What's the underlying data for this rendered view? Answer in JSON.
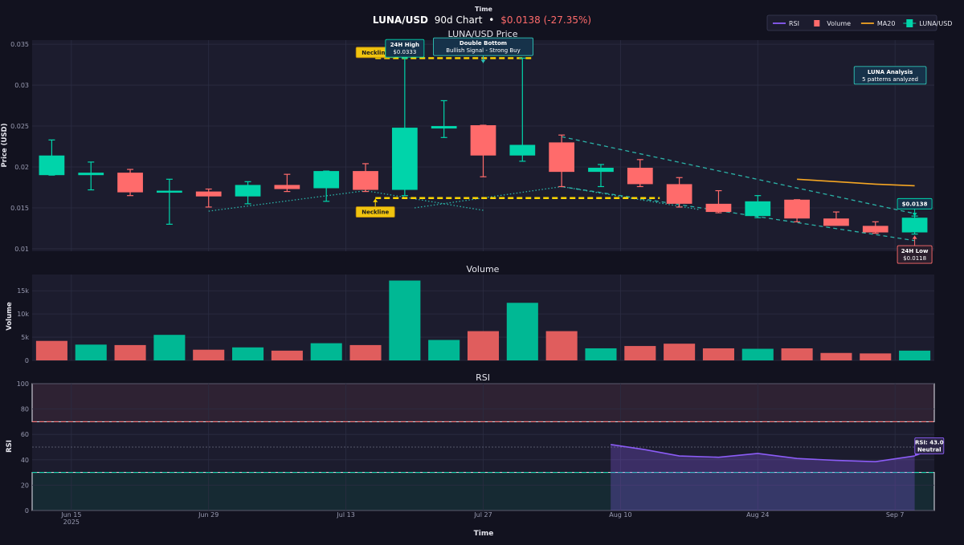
{
  "header": {
    "top_label": "Time",
    "title_symbol": "LUNA/USD",
    "title_period": "90d Chart",
    "title_bullet": "•",
    "title_change": "$0.0138 (-27.35%)"
  },
  "colors": {
    "background": "#12121f",
    "panel": "#1c1c2e",
    "grid": "#2b2d42",
    "bull": "#00d4aa",
    "bear": "#ff6b6b",
    "bull_volume": "#00b894",
    "bear_volume": "#e05d5d",
    "ma": "#f5a623",
    "rsi": "#8b5cf6",
    "neckline": "#ffd600",
    "trend": "#2ec4b6"
  },
  "legend": [
    {
      "label": "RSI",
      "kind": "line",
      "color": "#8b5cf6"
    },
    {
      "label": "Volume",
      "kind": "box",
      "color": "#ff6b6b"
    },
    {
      "label": "MA20",
      "kind": "line",
      "color": "#f5a623"
    },
    {
      "label": "LUNA/USD",
      "kind": "candle",
      "color": "#00d4aa"
    }
  ],
  "x_axis": {
    "label": "Time",
    "ticks": [
      {
        "day": 3,
        "label": "Jun 15",
        "sub": "2025"
      },
      {
        "day": 17,
        "label": "Jun 29",
        "sub": ""
      },
      {
        "day": 31,
        "label": "Jul 13",
        "sub": ""
      },
      {
        "day": 45,
        "label": "Jul 27",
        "sub": ""
      },
      {
        "day": 59,
        "label": "Aug 10",
        "sub": ""
      },
      {
        "day": 73,
        "label": "Aug 24",
        "sub": ""
      },
      {
        "day": 87,
        "label": "Sep 7",
        "sub": ""
      }
    ],
    "range": [
      -1,
      91
    ]
  },
  "chart_data": [
    {
      "type": "candlestick",
      "title": "LUNA/USD Price",
      "ylabel": "Price (USD)",
      "ylim": [
        0.0097,
        0.0355
      ],
      "yticks": [
        0.01,
        0.015,
        0.02,
        0.025,
        0.03,
        0.035
      ],
      "ytick_labels": [
        "0.01",
        "0.015",
        "0.02",
        "0.025",
        "0.03",
        "0.035"
      ],
      "grid": true,
      "candles": [
        {
          "day": 1,
          "open": 0.019,
          "high": 0.0233,
          "low": 0.019,
          "close": 0.0214
        },
        {
          "day": 5,
          "open": 0.019,
          "high": 0.0206,
          "low": 0.0172,
          "close": 0.0193
        },
        {
          "day": 9,
          "open": 0.0193,
          "high": 0.0197,
          "low": 0.0165,
          "close": 0.0169
        },
        {
          "day": 13,
          "open": 0.0169,
          "high": 0.0185,
          "low": 0.013,
          "close": 0.0171
        },
        {
          "day": 17,
          "open": 0.017,
          "high": 0.0173,
          "low": 0.0151,
          "close": 0.0164
        },
        {
          "day": 21,
          "open": 0.0164,
          "high": 0.0182,
          "low": 0.0155,
          "close": 0.0178
        },
        {
          "day": 25,
          "open": 0.0178,
          "high": 0.0191,
          "low": 0.017,
          "close": 0.0173
        },
        {
          "day": 29,
          "open": 0.0174,
          "high": 0.0195,
          "low": 0.0158,
          "close": 0.0195
        },
        {
          "day": 33,
          "open": 0.0195,
          "high": 0.0204,
          "low": 0.017,
          "close": 0.0172
        },
        {
          "day": 37,
          "open": 0.0172,
          "high": 0.0333,
          "low": 0.0165,
          "close": 0.0248
        },
        {
          "day": 41,
          "open": 0.0247,
          "high": 0.0281,
          "low": 0.0236,
          "close": 0.025
        },
        {
          "day": 45,
          "open": 0.0251,
          "high": 0.0251,
          "low": 0.0188,
          "close": 0.0214
        },
        {
          "day": 49,
          "open": 0.0214,
          "high": 0.0333,
          "low": 0.0207,
          "close": 0.0227
        },
        {
          "day": 53,
          "open": 0.023,
          "high": 0.0239,
          "low": 0.0176,
          "close": 0.0194
        },
        {
          "day": 57,
          "open": 0.0194,
          "high": 0.0203,
          "low": 0.0176,
          "close": 0.0199
        },
        {
          "day": 61,
          "open": 0.0199,
          "high": 0.0209,
          "low": 0.0176,
          "close": 0.0179
        },
        {
          "day": 65,
          "open": 0.0179,
          "high": 0.0187,
          "low": 0.0151,
          "close": 0.0155
        },
        {
          "day": 69,
          "open": 0.0155,
          "high": 0.0171,
          "low": 0.0144,
          "close": 0.0145
        },
        {
          "day": 73,
          "open": 0.014,
          "high": 0.0165,
          "low": 0.0138,
          "close": 0.0158
        },
        {
          "day": 77,
          "open": 0.016,
          "high": 0.016,
          "low": 0.0133,
          "close": 0.0137
        },
        {
          "day": 81,
          "open": 0.0137,
          "high": 0.0145,
          "low": 0.013,
          "close": 0.0128
        },
        {
          "day": 85,
          "open": 0.0128,
          "high": 0.0133,
          "low": 0.0119,
          "close": 0.012
        },
        {
          "day": 89,
          "open": 0.012,
          "high": 0.014,
          "low": 0.0118,
          "close": 0.0138
        }
      ],
      "ma20": [
        {
          "day": 77,
          "value": 0.0185
        },
        {
          "day": 81,
          "value": 0.0182
        },
        {
          "day": 85,
          "value": 0.0179
        },
        {
          "day": 89,
          "value": 0.0177
        }
      ],
      "necklines": [
        {
          "x0": 34,
          "x1": 50,
          "y": 0.0333
        },
        {
          "x0": 34,
          "x1": 63,
          "y": 0.0162
        }
      ],
      "trendlines": [
        {
          "style": "dashed",
          "points": [
            [
              53,
              0.0237
            ],
            [
              89,
              0.0143
            ]
          ]
        },
        {
          "style": "dashed",
          "points": [
            [
              53,
              0.0176
            ],
            [
              89,
              0.011
            ]
          ]
        },
        {
          "style": "dotted",
          "points": [
            [
              17,
              0.0146
            ],
            [
              33,
              0.0171
            ],
            [
              45,
              0.0147
            ]
          ]
        },
        {
          "style": "dotted",
          "points": [
            [
              38,
              0.015
            ],
            [
              53,
              0.0176
            ],
            [
              67,
              0.0148
            ]
          ]
        }
      ],
      "annotations": [
        {
          "id": "neckline-top",
          "lines": [
            "Neckline"
          ],
          "style": "yellow",
          "day": 34,
          "price": 0.034,
          "arrow_to": [
            34,
            0.0333
          ]
        },
        {
          "id": "neckline-bottom",
          "lines": [
            "Neckline"
          ],
          "style": "yellow",
          "day": 34,
          "price": 0.0145,
          "arrow_to": [
            34,
            0.0161
          ]
        },
        {
          "id": "high-24h",
          "lines": [
            "24H High",
            "$0.0333"
          ],
          "style": "teal",
          "day": 37,
          "price": 0.0345,
          "arrow_to": [
            37,
            0.0333
          ]
        },
        {
          "id": "double-bottom",
          "lines": [
            "Double Bottom",
            "Bullish Signal - Strong Buy"
          ],
          "style": "box",
          "day": 45,
          "price": 0.0347,
          "arrow_to": [
            45,
            0.0327
          ]
        },
        {
          "id": "luna-analysis",
          "lines": [
            "LUNA Analysis",
            "5 patterns analyzed"
          ],
          "style": "box",
          "day": 86.5,
          "price": 0.0312
        },
        {
          "id": "price-now",
          "lines": [
            "$0.0138"
          ],
          "style": "teal",
          "day": 89,
          "price": 0.0155,
          "arrow_to": [
            89,
            0.014
          ]
        },
        {
          "id": "low-24h",
          "lines": [
            "24H Low",
            "$0.0118"
          ],
          "style": "red",
          "day": 89,
          "price": 0.0093,
          "arrow_to": [
            89,
            0.0116
          ]
        }
      ]
    },
    {
      "type": "bar",
      "title": "Volume",
      "ylabel": "Volume",
      "ylim": [
        0,
        18500
      ],
      "yticks": [
        0,
        5000,
        10000,
        15000
      ],
      "ytick_labels": [
        "0",
        "5k",
        "10k",
        "15k"
      ],
      "grid": true,
      "bars": [
        {
          "day": 1,
          "value": 4200,
          "dir": "down"
        },
        {
          "day": 5,
          "value": 3400,
          "dir": "up"
        },
        {
          "day": 9,
          "value": 3300,
          "dir": "down"
        },
        {
          "day": 13,
          "value": 5500,
          "dir": "up"
        },
        {
          "day": 17,
          "value": 2300,
          "dir": "down"
        },
        {
          "day": 21,
          "value": 2800,
          "dir": "up"
        },
        {
          "day": 25,
          "value": 2100,
          "dir": "down"
        },
        {
          "day": 29,
          "value": 3700,
          "dir": "up"
        },
        {
          "day": 33,
          "value": 3300,
          "dir": "down"
        },
        {
          "day": 37,
          "value": 17200,
          "dir": "up"
        },
        {
          "day": 41,
          "value": 4400,
          "dir": "up"
        },
        {
          "day": 45,
          "value": 6300,
          "dir": "down"
        },
        {
          "day": 49,
          "value": 12400,
          "dir": "up"
        },
        {
          "day": 53,
          "value": 6300,
          "dir": "down"
        },
        {
          "day": 57,
          "value": 2600,
          "dir": "up"
        },
        {
          "day": 61,
          "value": 3100,
          "dir": "down"
        },
        {
          "day": 65,
          "value": 3600,
          "dir": "down"
        },
        {
          "day": 69,
          "value": 2600,
          "dir": "down"
        },
        {
          "day": 73,
          "value": 2500,
          "dir": "up"
        },
        {
          "day": 77,
          "value": 2600,
          "dir": "down"
        },
        {
          "day": 81,
          "value": 1600,
          "dir": "down"
        },
        {
          "day": 85,
          "value": 1500,
          "dir": "down"
        },
        {
          "day": 89,
          "value": 2100,
          "dir": "up"
        }
      ]
    },
    {
      "type": "line",
      "title": "RSI",
      "ylabel": "RSI",
      "ylim": [
        0,
        100
      ],
      "yticks": [
        0,
        20,
        40,
        60,
        80,
        100
      ],
      "ytick_labels": [
        "0",
        "20",
        "40",
        "60",
        "80",
        "100"
      ],
      "grid": true,
      "overbought": 70,
      "oversold": 30,
      "midline": 50,
      "points": [
        {
          "day": 58,
          "value": 52
        },
        {
          "day": 61.5,
          "value": 48
        },
        {
          "day": 65,
          "value": 43
        },
        {
          "day": 69,
          "value": 42
        },
        {
          "day": 73,
          "value": 45
        },
        {
          "day": 77,
          "value": 41
        },
        {
          "day": 81,
          "value": 39.5
        },
        {
          "day": 85,
          "value": 38.5
        },
        {
          "day": 89,
          "value": 43
        }
      ],
      "annotation": {
        "lines": [
          "RSI: 43.0",
          "Neutral"
        ],
        "day": 90,
        "value": 51,
        "arrow_to": [
          89,
          43
        ]
      }
    }
  ]
}
